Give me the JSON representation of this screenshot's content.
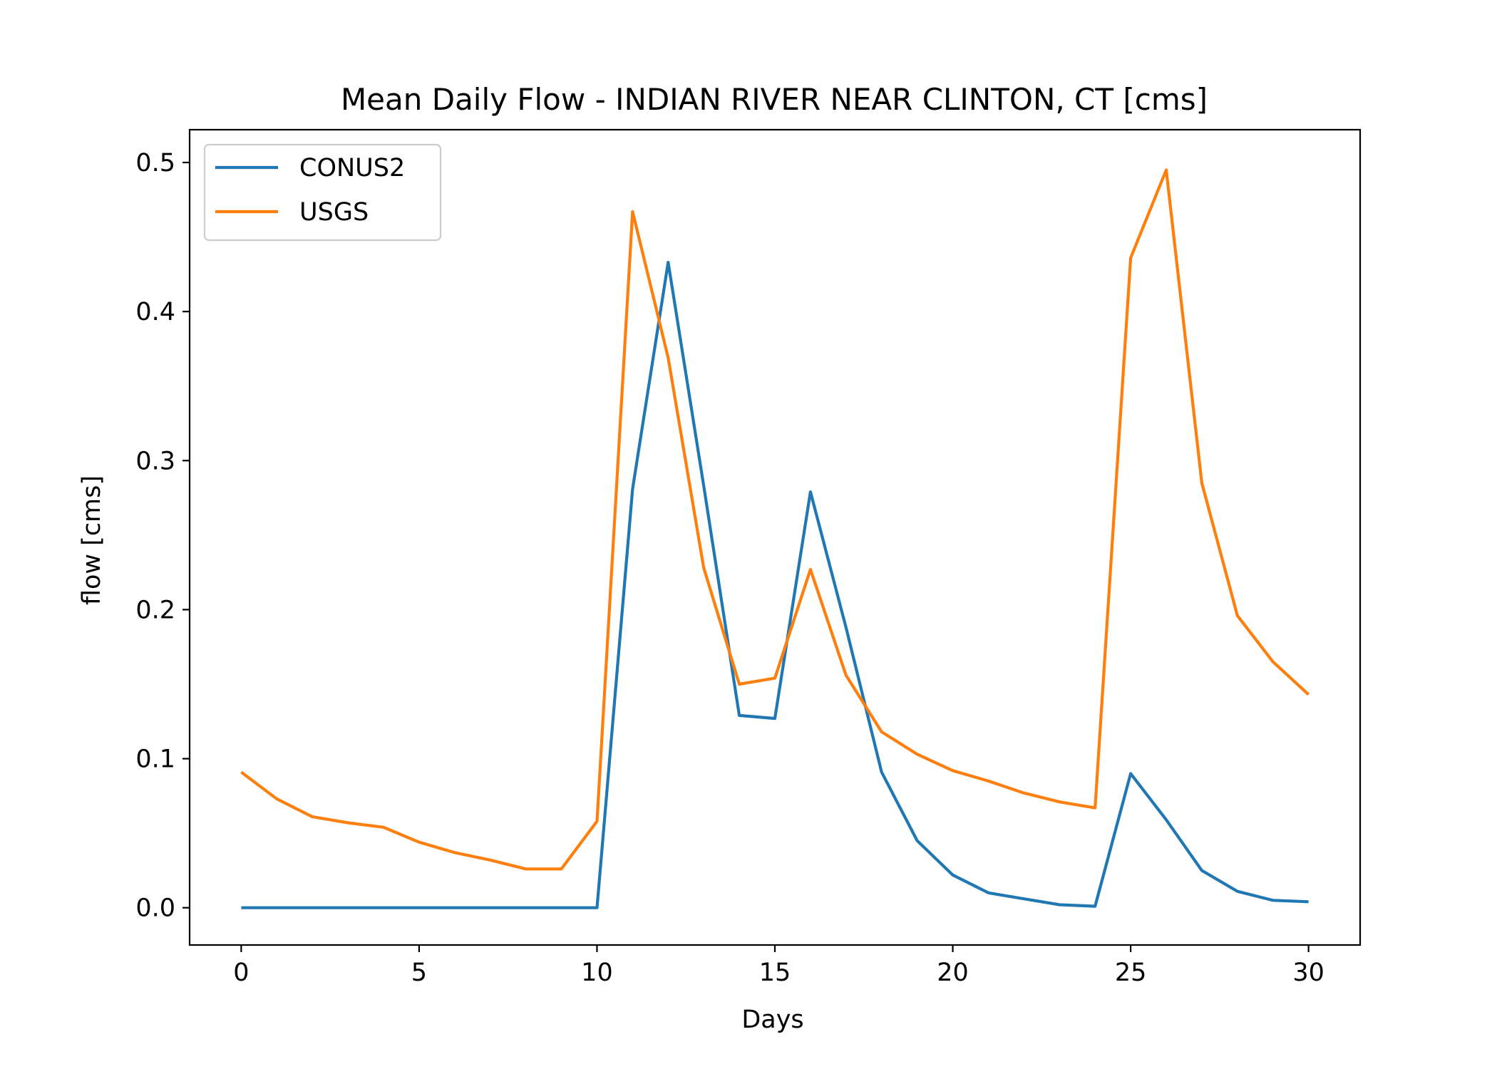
{
  "chart_data": {
    "type": "line",
    "title": "Mean Daily Flow - INDIAN RIVER NEAR CLINTON, CT [cms]",
    "xlabel": "Days",
    "ylabel": "flow [cms]",
    "xlim": [
      -1.45,
      31.45
    ],
    "ylim": [
      -0.025,
      0.522
    ],
    "xticks": [
      0,
      5,
      10,
      15,
      20,
      25,
      30
    ],
    "yticks": [
      0.0,
      0.1,
      0.2,
      0.3,
      0.4,
      0.5
    ],
    "xtick_labels": [
      "0",
      "5",
      "10",
      "15",
      "20",
      "25",
      "30"
    ],
    "ytick_labels": [
      "0.0",
      "0.1",
      "0.2",
      "0.3",
      "0.4",
      "0.5"
    ],
    "grid": false,
    "legend_position": "top-left",
    "x": [
      0,
      1,
      2,
      3,
      4,
      5,
      6,
      7,
      8,
      9,
      10,
      11,
      12,
      13,
      14,
      15,
      16,
      17,
      18,
      19,
      20,
      21,
      22,
      23,
      24,
      25,
      26,
      27,
      28,
      29,
      30
    ],
    "series": [
      {
        "name": "CONUS2",
        "color": "#1f77b4",
        "values": [
          0,
          0,
          0,
          0,
          0,
          0,
          0,
          0,
          0,
          0,
          0,
          0.281,
          0.433,
          0.283,
          0.129,
          0.127,
          0.279,
          0.188,
          0.091,
          0.045,
          0.022,
          0.01,
          0.006,
          0.002,
          0.001,
          0.09,
          0.059,
          0.025,
          0.011,
          0.005,
          0.004
        ]
      },
      {
        "name": "USGS",
        "color": "#ff7f0e",
        "values": [
          0.091,
          0.073,
          0.061,
          0.057,
          0.054,
          0.044,
          0.037,
          0.032,
          0.026,
          0.026,
          0.058,
          0.467,
          0.369,
          0.228,
          0.15,
          0.154,
          0.227,
          0.156,
          0.118,
          0.103,
          0.092,
          0.085,
          0.077,
          0.071,
          0.067,
          0.436,
          0.495,
          0.285,
          0.196,
          0.165,
          0.143
        ]
      }
    ]
  }
}
